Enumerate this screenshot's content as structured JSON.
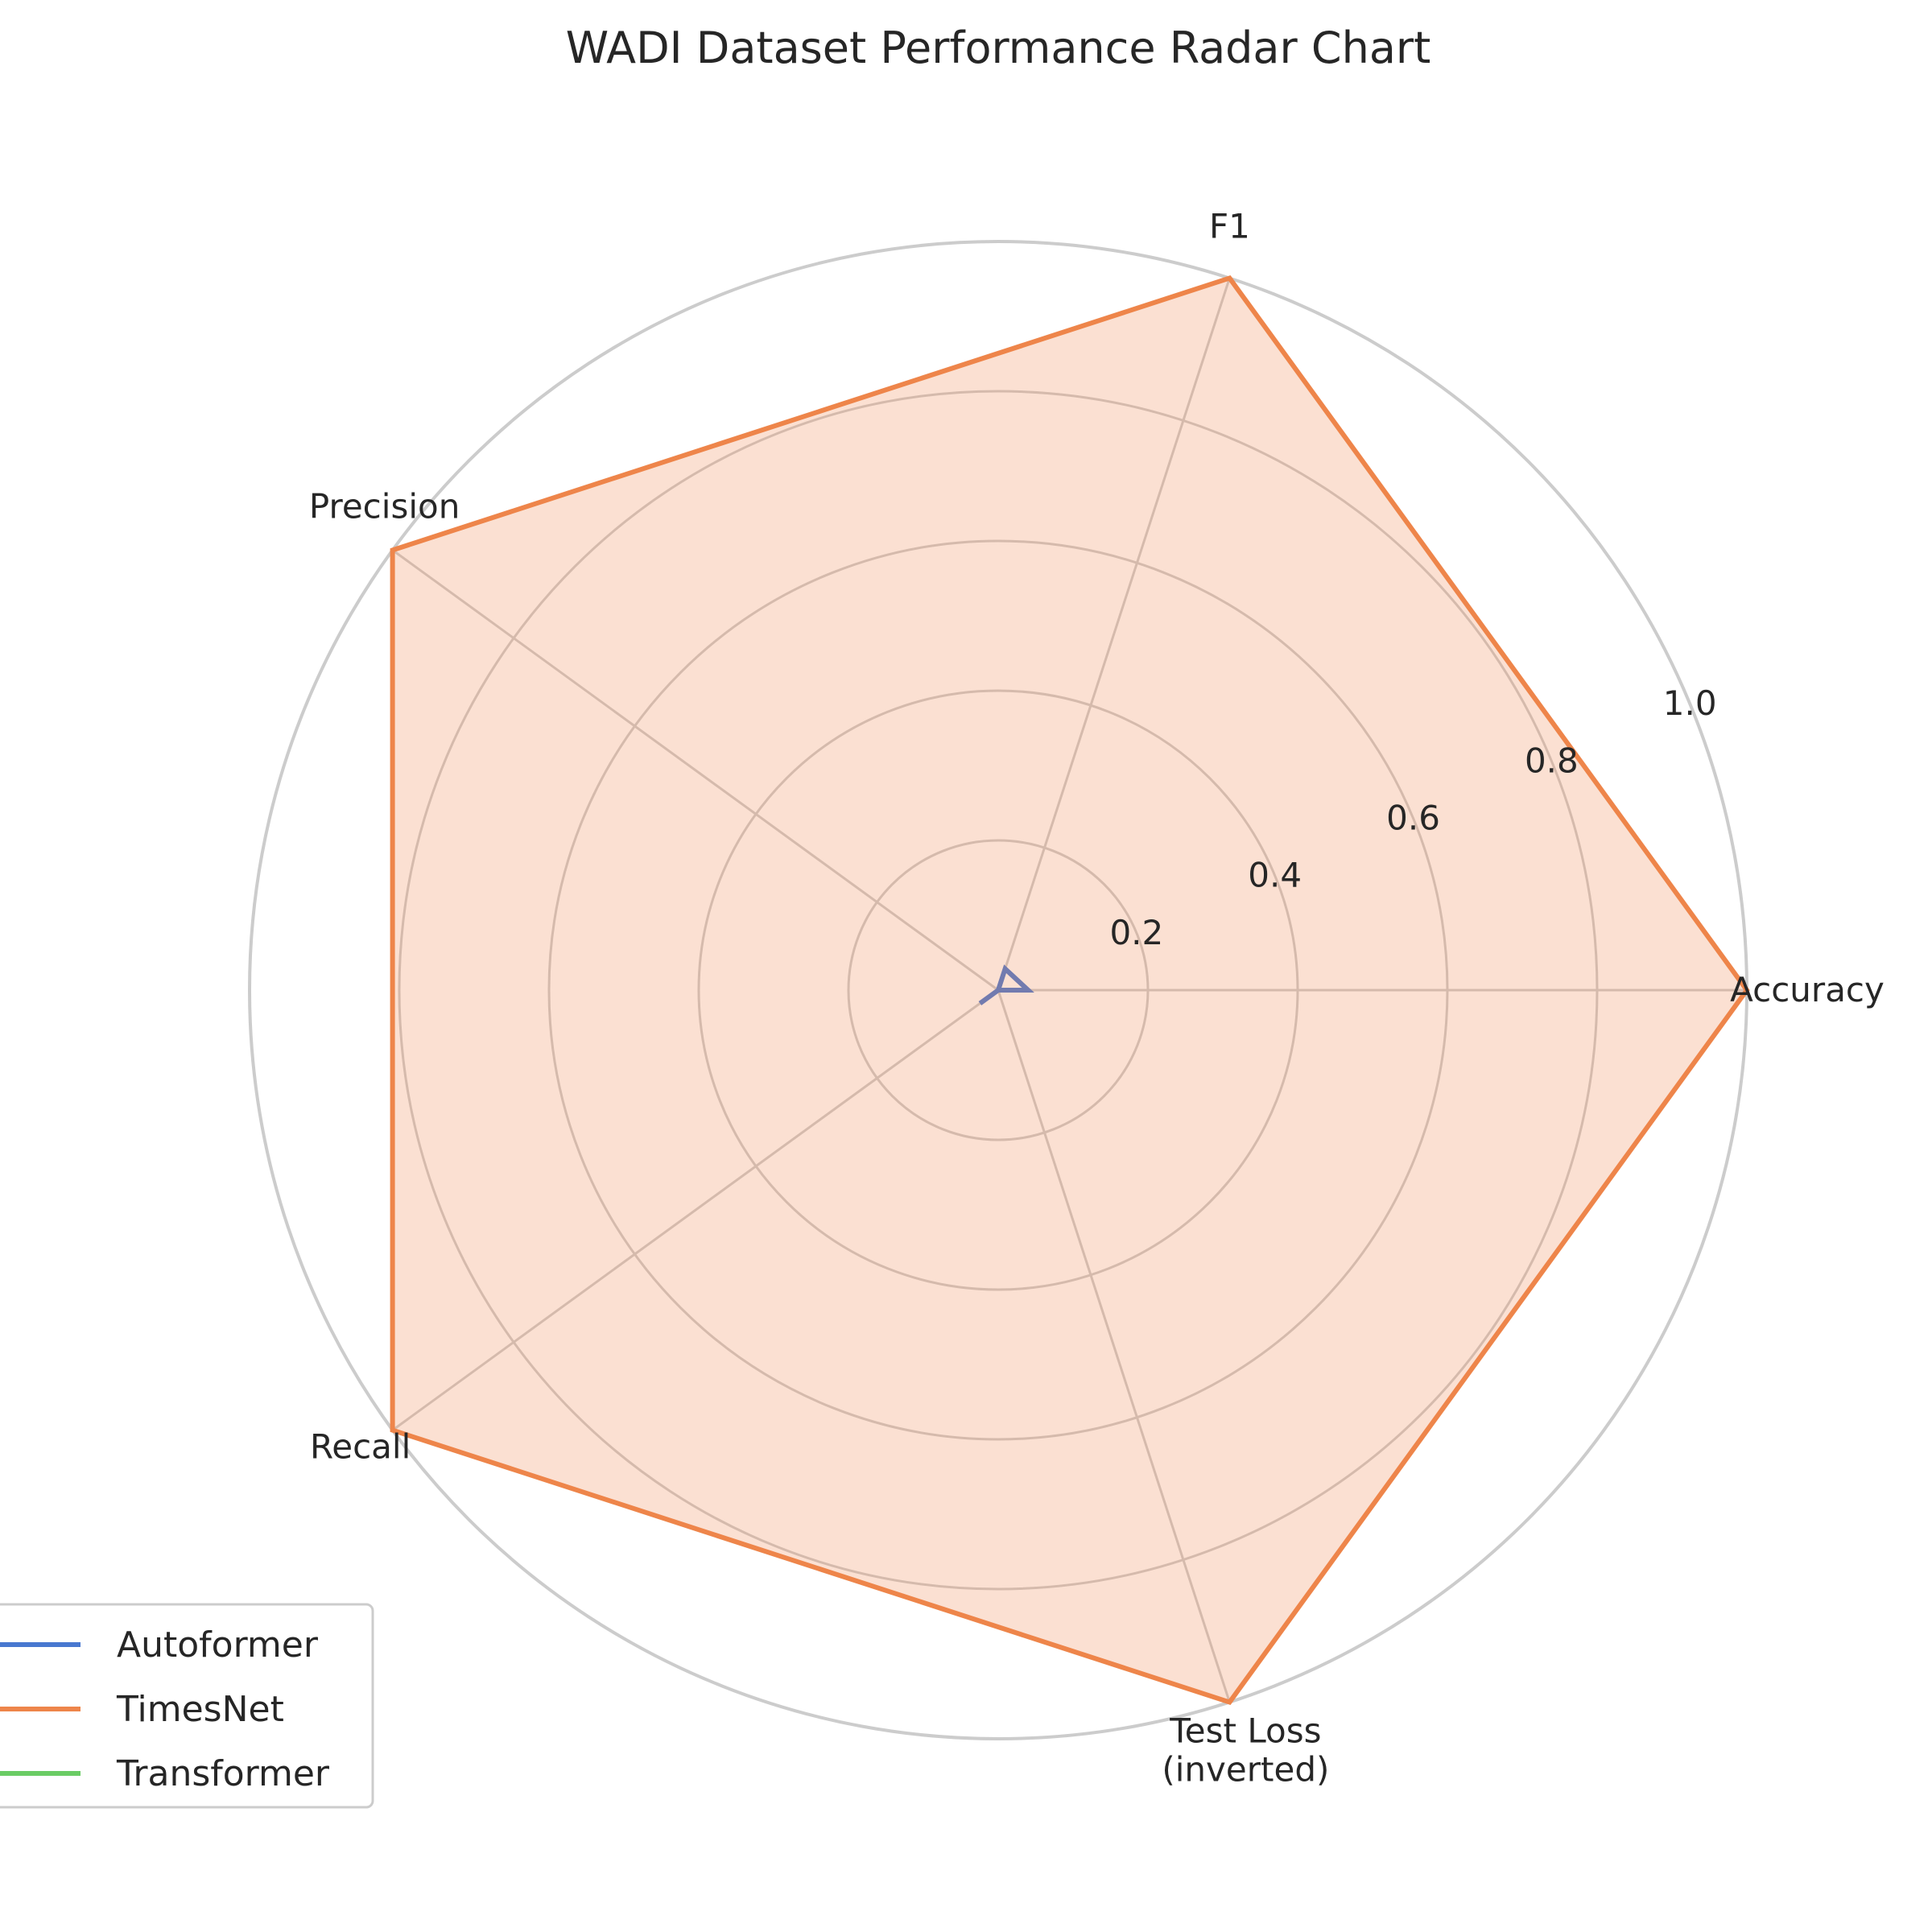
{
  "chart_data": {
    "type": "radar",
    "title": "WADI Dataset Performance Radar Chart",
    "axes": [
      "Accuracy",
      "F1",
      "Precision",
      "Recall",
      "Test Loss\n(inverted)"
    ],
    "rlim": [
      0,
      1.0
    ],
    "rticks": [
      0.2,
      0.4,
      0.6,
      0.8,
      1.0
    ],
    "rtick_labels": [
      "0.2",
      "0.4",
      "0.6",
      "0.8",
      "1.0"
    ],
    "grid": true,
    "legend_position": "lower-left",
    "series": [
      {
        "name": "Autoformer",
        "color": "#4878d0",
        "values": [
          0.04,
          0.03,
          0.0,
          0.03,
          0.0
        ],
        "fill": false
      },
      {
        "name": "TimesNet",
        "color": "#ee854a",
        "values": [
          1.0,
          1.0,
          1.0,
          1.0,
          1.0
        ],
        "fill": true
      },
      {
        "name": "Transformer",
        "color": "#6acc64",
        "values": [
          0.0,
          0.0,
          0.0,
          0.0,
          0.0
        ],
        "fill": false
      }
    ]
  }
}
